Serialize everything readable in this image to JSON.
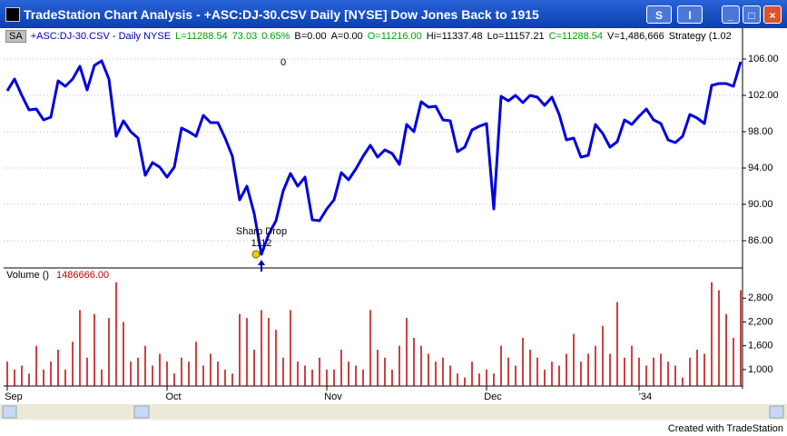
{
  "window": {
    "title": "TradeStation Chart Analysis - +ASC:DJ-30.CSV  Daily  [NYSE] Dow Jones Back to 1915",
    "buttons": [
      "S",
      "I"
    ]
  },
  "info_line": {
    "symbol_box": "SA",
    "items": [
      {
        "text": "+ASC:DJ-30.CSV - Daily  NYSE",
        "color": "#0000b0"
      },
      {
        "text": "L=11288.54",
        "color": "#00a000"
      },
      {
        "text": "73.03",
        "color": "#00a000"
      },
      {
        "text": "0.65%",
        "color": "#00a000"
      },
      {
        "text": "B=0.00",
        "color": "#000000"
      },
      {
        "text": "A=0.00",
        "color": "#000000"
      },
      {
        "text": "O=11216.00",
        "color": "#00a000"
      },
      {
        "text": "Hi=11337.48",
        "color": "#000000"
      },
      {
        "text": "Lo=11157.21",
        "color": "#000000"
      },
      {
        "text": "C=11288.54",
        "color": "#00a000"
      },
      {
        "text": "V=1,486,666",
        "color": "#000000"
      },
      {
        "text": "Strategy (1.02",
        "color": "#000000"
      }
    ]
  },
  "footer": "Created with TradeStation",
  "chart_data": [
    {
      "type": "line",
      "color": "#0000e0",
      "grid": true,
      "values": [
        102.5,
        103.8,
        102.0,
        100.4,
        100.5,
        99.3,
        99.6,
        103.6,
        103.0,
        103.8,
        105.2,
        102.6,
        105.3,
        105.8,
        103.8,
        97.5,
        99.2,
        98.0,
        97.3,
        93.2,
        94.6,
        94.1,
        93.0,
        94.1,
        98.4,
        98.0,
        97.5,
        99.8,
        99.0,
        99.0,
        97.3,
        95.3,
        90.5,
        92.0,
        89.0,
        84.5,
        86.7,
        88.2,
        91.5,
        93.4,
        92.0,
        93.0,
        88.3,
        88.2,
        89.5,
        90.5,
        93.5,
        92.7,
        93.9,
        95.3,
        96.5,
        95.2,
        96.0,
        95.6,
        94.4,
        98.8,
        98.0,
        101.3,
        100.7,
        100.8,
        99.3,
        99.2,
        95.8,
        96.3,
        98.2,
        98.6,
        98.9,
        89.5,
        101.9,
        101.4,
        102.0,
        101.2,
        102.0,
        101.8,
        100.9,
        101.8,
        99.9,
        97.1,
        97.3,
        95.2,
        95.4,
        98.8,
        97.8,
        96.3,
        96.9,
        99.3,
        98.8,
        99.7,
        100.5,
        99.3,
        98.9,
        97.1,
        96.8,
        97.5,
        99.9,
        99.5,
        98.9,
        103.1,
        103.3,
        103.3,
        103.0,
        105.7
      ],
      "ylim": [
        83,
        109.4
      ],
      "yticks": [
        {
          "value": 86,
          "label": "86.00"
        },
        {
          "value": 90,
          "label": "90.00"
        },
        {
          "value": 94,
          "label": "94.00"
        },
        {
          "value": 98,
          "label": "98.00"
        },
        {
          "value": 102,
          "label": "102.00"
        },
        {
          "value": 106,
          "label": "106.00"
        }
      ],
      "annotations": [
        0,
        "Sharp Drop",
        1112
      ]
    },
    {
      "type": "bar",
      "title": "Volume ()",
      "last_value": {
        "value": 1486666,
        "label": "1486666.00"
      },
      "color": "#c00000",
      "categories": [
        "Sep",
        null,
        null,
        null,
        null,
        null,
        null,
        null,
        null,
        null,
        null,
        null,
        null,
        null,
        null,
        null,
        null,
        null,
        null,
        null,
        null,
        null,
        "Oct",
        null,
        null,
        null,
        null,
        null,
        null,
        null,
        null,
        null,
        null,
        null,
        null,
        null,
        null,
        null,
        null,
        null,
        null,
        null,
        null,
        null,
        "Nov",
        null,
        null,
        null,
        null,
        null,
        null,
        null,
        null,
        null,
        null,
        null,
        null,
        null,
        null,
        null,
        null,
        null,
        null,
        null,
        null,
        null,
        "Dec",
        null,
        null,
        null,
        null,
        null,
        null,
        null,
        null,
        null,
        null,
        null,
        null,
        null,
        null,
        null,
        null,
        null,
        null,
        null,
        null,
        "'34",
        null,
        null,
        null,
        null,
        null,
        null,
        null,
        null,
        null,
        null,
        null,
        null,
        null,
        null
      ],
      "values": [
        1200,
        1000,
        1100,
        900,
        1600,
        1000,
        1200,
        1500,
        1000,
        1700,
        2500,
        1300,
        2400,
        1000,
        2300,
        3200,
        2200,
        1200,
        1300,
        1600,
        1100,
        1400,
        1200,
        900,
        1300,
        1200,
        1700,
        1100,
        1400,
        1200,
        1000,
        900,
        2400,
        2300,
        1500,
        2500,
        2300,
        2000,
        1300,
        2500,
        1200,
        1100,
        1000,
        1300,
        1000,
        1000,
        1500,
        1200,
        1100,
        1000,
        2500,
        1500,
        1300,
        1000,
        1600,
        2300,
        1800,
        1600,
        1400,
        1200,
        1300,
        1100,
        900,
        800,
        1200,
        900,
        1000,
        900,
        1600,
        1300,
        1100,
        1800,
        1500,
        1300,
        1000,
        1200,
        1100,
        1400,
        1900,
        1200,
        1400,
        1600,
        2100,
        1400,
        2700,
        1300,
        1600,
        1300,
        1100,
        1300,
        1400,
        1200,
        1100,
        800,
        1300,
        1500,
        1400,
        3200,
        3000,
        2400,
        1800,
        3000
      ],
      "ylim": [
        585,
        3515
      ],
      "yticks": [
        {
          "value": 1000,
          "label": "1,000"
        },
        {
          "value": 1600,
          "label": "1,600"
        },
        {
          "value": 2200,
          "label": "2,200"
        },
        {
          "value": 2800,
          "label": "2,800"
        }
      ]
    }
  ]
}
